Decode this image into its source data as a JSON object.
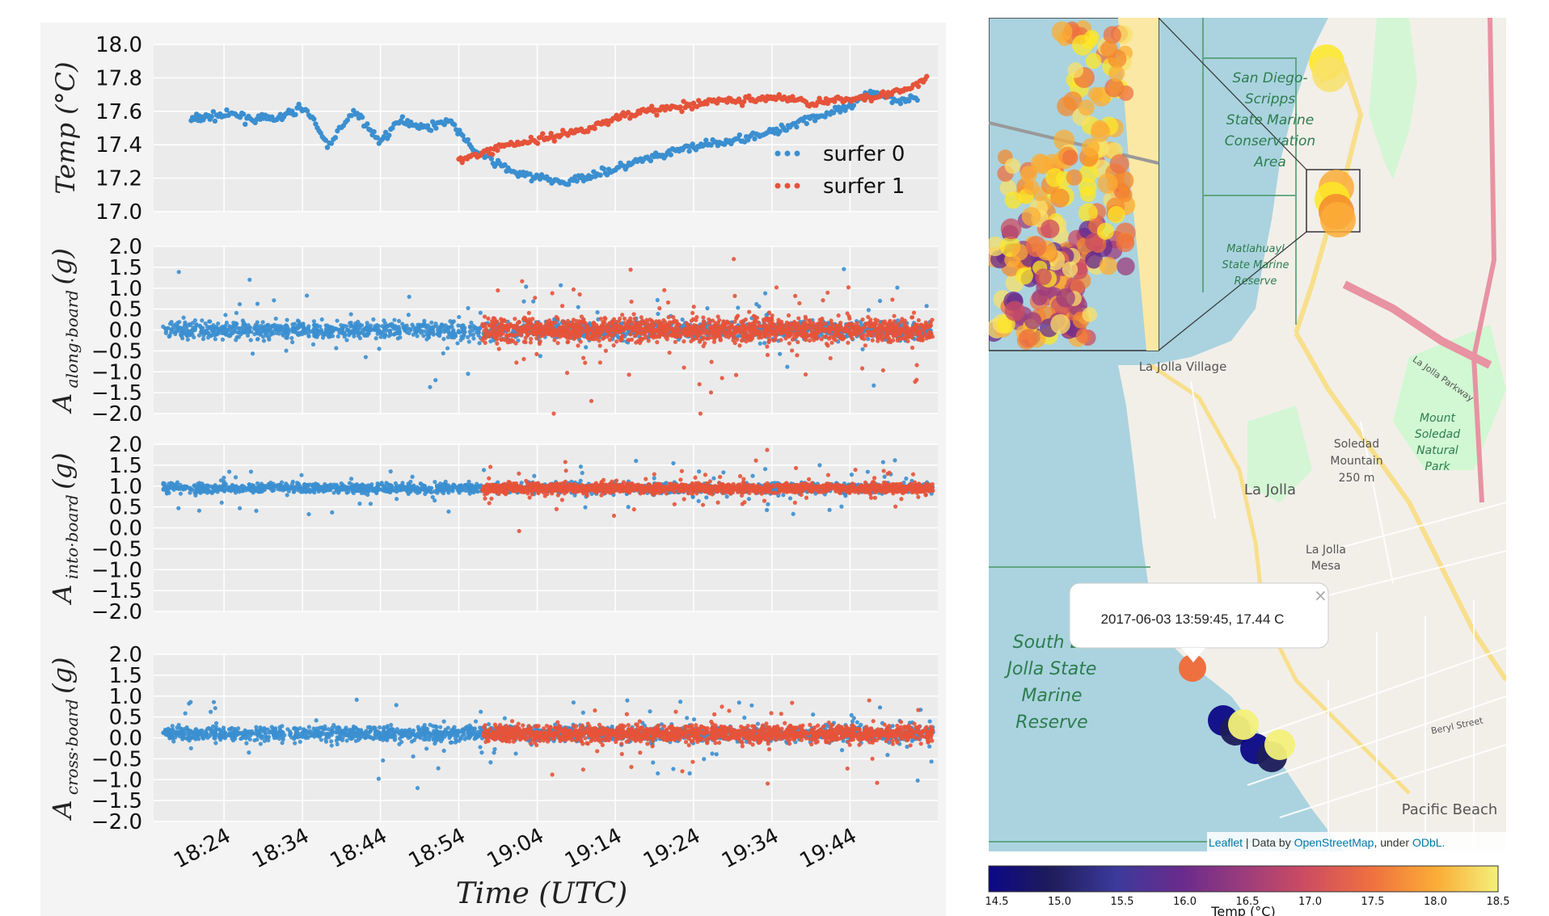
{
  "chart_data": [
    {
      "type": "scatter",
      "panel": "temperature",
      "ylabel": "Temp (°C)",
      "ylim": [
        17.0,
        18.0
      ],
      "yticks": [
        "18.0",
        "17.8",
        "17.6",
        "17.4",
        "17.2",
        "17.0"
      ],
      "legend": {
        "placement": "right",
        "entries": [
          "surfer 0",
          "surfer 1"
        ]
      },
      "series": [
        {
          "name": "surfer 0",
          "color": "#3b8fd0",
          "x": [
            18.33,
            18.37,
            18.42,
            18.47,
            18.52,
            18.57,
            18.62,
            18.68,
            18.73,
            18.78,
            18.83,
            18.88,
            18.93,
            18.98,
            19.03,
            19.08,
            19.13,
            19.18,
            19.23,
            19.28,
            19.33,
            19.38,
            19.43,
            19.48,
            19.53,
            19.58,
            19.63,
            19.68,
            19.73,
            19.78,
            19.83,
            19.88
          ],
          "y": [
            17.55,
            17.57,
            17.58,
            17.55,
            17.56,
            17.63,
            17.4,
            17.6,
            17.42,
            17.55,
            17.5,
            17.55,
            17.37,
            17.29,
            17.22,
            17.2,
            17.17,
            17.22,
            17.25,
            17.3,
            17.33,
            17.38,
            17.4,
            17.42,
            17.46,
            17.48,
            17.55,
            17.58,
            17.62,
            17.72,
            17.67,
            17.68
          ]
        },
        {
          "name": "surfer 1",
          "color": "#e5533a",
          "x": [
            18.9,
            18.95,
            19.0,
            19.05,
            19.1,
            19.15,
            19.2,
            19.25,
            19.3,
            19.35,
            19.4,
            19.45,
            19.5,
            19.55,
            19.6,
            19.65,
            19.7,
            19.75,
            19.8,
            19.85,
            19.9
          ],
          "y": [
            17.3,
            17.35,
            17.4,
            17.42,
            17.45,
            17.48,
            17.52,
            17.58,
            17.6,
            17.62,
            17.63,
            17.67,
            17.66,
            17.68,
            17.68,
            17.65,
            17.66,
            17.68,
            17.7,
            17.72,
            17.8
          ]
        }
      ]
    },
    {
      "type": "scatter",
      "panel": "along-board",
      "ylabel": "A along·board (g)",
      "ylim": [
        -2.0,
        2.0
      ],
      "yticks": [
        "2.0",
        "1.5",
        "1.0",
        "0.5",
        "0.0",
        "−0.5",
        "−1.0",
        "−1.5",
        "−2.0"
      ],
      "series": [
        {
          "name": "surfer 0",
          "color": "#3b8fd0",
          "center": 0.0,
          "spread": 0.35
        },
        {
          "name": "surfer 1",
          "color": "#e5533a",
          "center": 0.0,
          "spread": 0.5
        }
      ]
    },
    {
      "type": "scatter",
      "panel": "into-board",
      "ylabel": "A into·board (g)",
      "ylim": [
        -2.0,
        2.0
      ],
      "yticks": [
        "2.0",
        "1.5",
        "1.0",
        "0.5",
        "0.0",
        "−0.5",
        "−1.0",
        "−1.5",
        "−2.0"
      ],
      "series": [
        {
          "name": "surfer 0",
          "color": "#3b8fd0",
          "center": 0.95,
          "spread": 0.2
        },
        {
          "name": "surfer 1",
          "color": "#e5533a",
          "center": 0.95,
          "spread": 0.2
        }
      ]
    },
    {
      "type": "scatter",
      "panel": "cross-board",
      "ylabel": "A cross·board (g)",
      "ylim": [
        -2.0,
        2.0
      ],
      "yticks": [
        "2.0",
        "1.5",
        "1.0",
        "0.5",
        "0.0",
        "−0.5",
        "−1.0",
        "−1.5",
        "−2.0"
      ],
      "xlabel": "Time (UTC)",
      "xticks": [
        "18:24",
        "18:34",
        "18:44",
        "18:54",
        "19:04",
        "19:14",
        "19:24",
        "19:34",
        "19:44"
      ],
      "series": [
        {
          "name": "surfer 0",
          "color": "#3b8fd0",
          "center": 0.1,
          "spread": 0.3
        },
        {
          "name": "surfer 1",
          "color": "#e5533a",
          "center": 0.1,
          "spread": 0.35
        }
      ]
    }
  ],
  "map": {
    "inset_labels": [
      "San Diego-",
      "Scripps",
      "State Marine",
      "Conservation",
      "Area"
    ],
    "reserve_labels": [
      "Matlahuayl",
      "State Marine",
      "Reserve"
    ],
    "places": [
      "La Jolla Village",
      "La Jolla",
      "Soledad",
      "Mountain",
      "250 m",
      "Mount",
      "Soledad",
      "Natural",
      "Park",
      "La Jolla",
      "Mesa",
      "Pacific Beach",
      "La Jolla Parkway",
      "Beryl Street"
    ],
    "south_reserve": [
      "South La",
      "Jolla State",
      "Marine",
      "Reserve"
    ],
    "popup_text": "2017-06-03 13:59:45, 17.44 C",
    "popup_close": "×",
    "attribution_leaflet": "Leaflet",
    "attribution_rest": " | Data by ",
    "attribution_osm": "OpenStreetMap",
    "attribution_tail": ", under ",
    "attribution_odbl": "ODbL.",
    "colorbar_ticks": [
      "14.5",
      "15.0",
      "15.5",
      "16.0",
      "16.5",
      "17.0",
      "17.5",
      "18.0",
      "18.5"
    ],
    "colorbar_label": "Temp (°C)",
    "colors": {
      "water": "#aad3df",
      "land": "#f2efe9",
      "park": "#c8facc",
      "road": "#f8df8c"
    }
  }
}
